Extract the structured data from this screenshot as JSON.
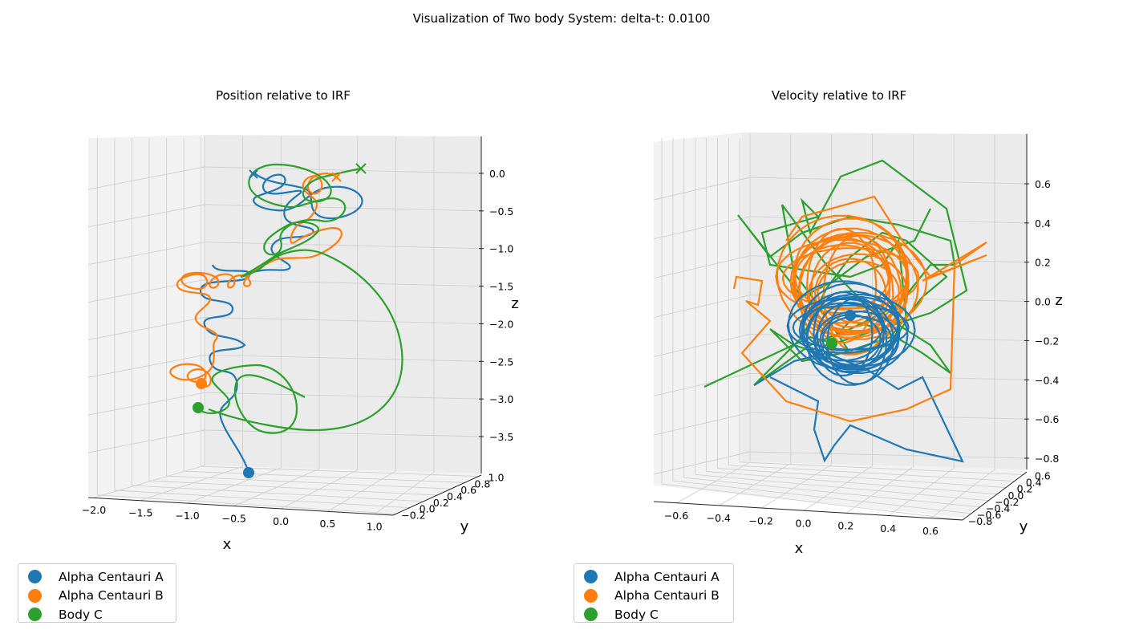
{
  "suptitle": "Visualization of Two body System: delta-t: 0.0100",
  "colors": {
    "a": "#1f77b4",
    "b": "#ff7f0e",
    "c": "#2ca02c"
  },
  "chart_data": [
    {
      "type": "line",
      "projection": "3d",
      "title": "Position relative to IRF",
      "xlabel": "x",
      "ylabel": "y",
      "zlabel": "z",
      "x_ticks": [
        "−2.0",
        "−1.5",
        "−1.0",
        "−0.5",
        "0.0",
        "0.5",
        "1.0"
      ],
      "y_ticks": [
        "−0.2",
        "0.0",
        "0.2",
        "0.4",
        "0.6",
        "0.8",
        "1.0"
      ],
      "z_ticks": [
        "0.0",
        "−0.5",
        "−1.0",
        "−1.5",
        "−2.0",
        "−2.5",
        "−3.0",
        "−3.5"
      ],
      "xlim": [
        -2.0,
        1.2
      ],
      "ylim": [
        -0.2,
        1.0
      ],
      "zlim": [
        -4.0,
        0.3
      ],
      "grid": true,
      "legend": [
        "Alpha Centauri A",
        "Alpha Centauri B",
        "Body C"
      ],
      "legend_position": "lower-left, below axes",
      "start_markers": "filled circle (start) and x (end) per body",
      "series": [
        {
          "name": "Alpha Centauri A",
          "color": "#1f77b4"
        },
        {
          "name": "Alpha Centauri B",
          "color": "#ff7f0e"
        },
        {
          "name": "Body C",
          "color": "#2ca02c"
        }
      ]
    },
    {
      "type": "line",
      "projection": "3d",
      "title": "Velocity relative to IRF",
      "xlabel": "x",
      "ylabel": "y",
      "zlabel": "z",
      "x_ticks": [
        "−0.6",
        "−0.4",
        "−0.2",
        "0.0",
        "0.2",
        "0.4",
        "0.6"
      ],
      "y_ticks": [
        "−0.8",
        "−0.6",
        "−0.4",
        "−0.2",
        "0.0",
        "0.2",
        "0.4",
        "0.6"
      ],
      "z_ticks": [
        "0.6",
        "0.4",
        "0.2",
        "0.0",
        "−0.2",
        "−0.4",
        "−0.6",
        "−0.8"
      ],
      "xlim": [
        -0.7,
        0.7
      ],
      "ylim": [
        -0.8,
        0.7
      ],
      "zlim": [
        -0.85,
        0.75
      ],
      "grid": true,
      "legend": [
        "Alpha Centauri A",
        "Alpha Centauri B",
        "Body C"
      ],
      "legend_position": "lower-left, below axes",
      "series": [
        {
          "name": "Alpha Centauri A",
          "color": "#1f77b4"
        },
        {
          "name": "Alpha Centauri B",
          "color": "#ff7f0e"
        },
        {
          "name": "Body C",
          "color": "#2ca02c"
        }
      ]
    }
  ]
}
